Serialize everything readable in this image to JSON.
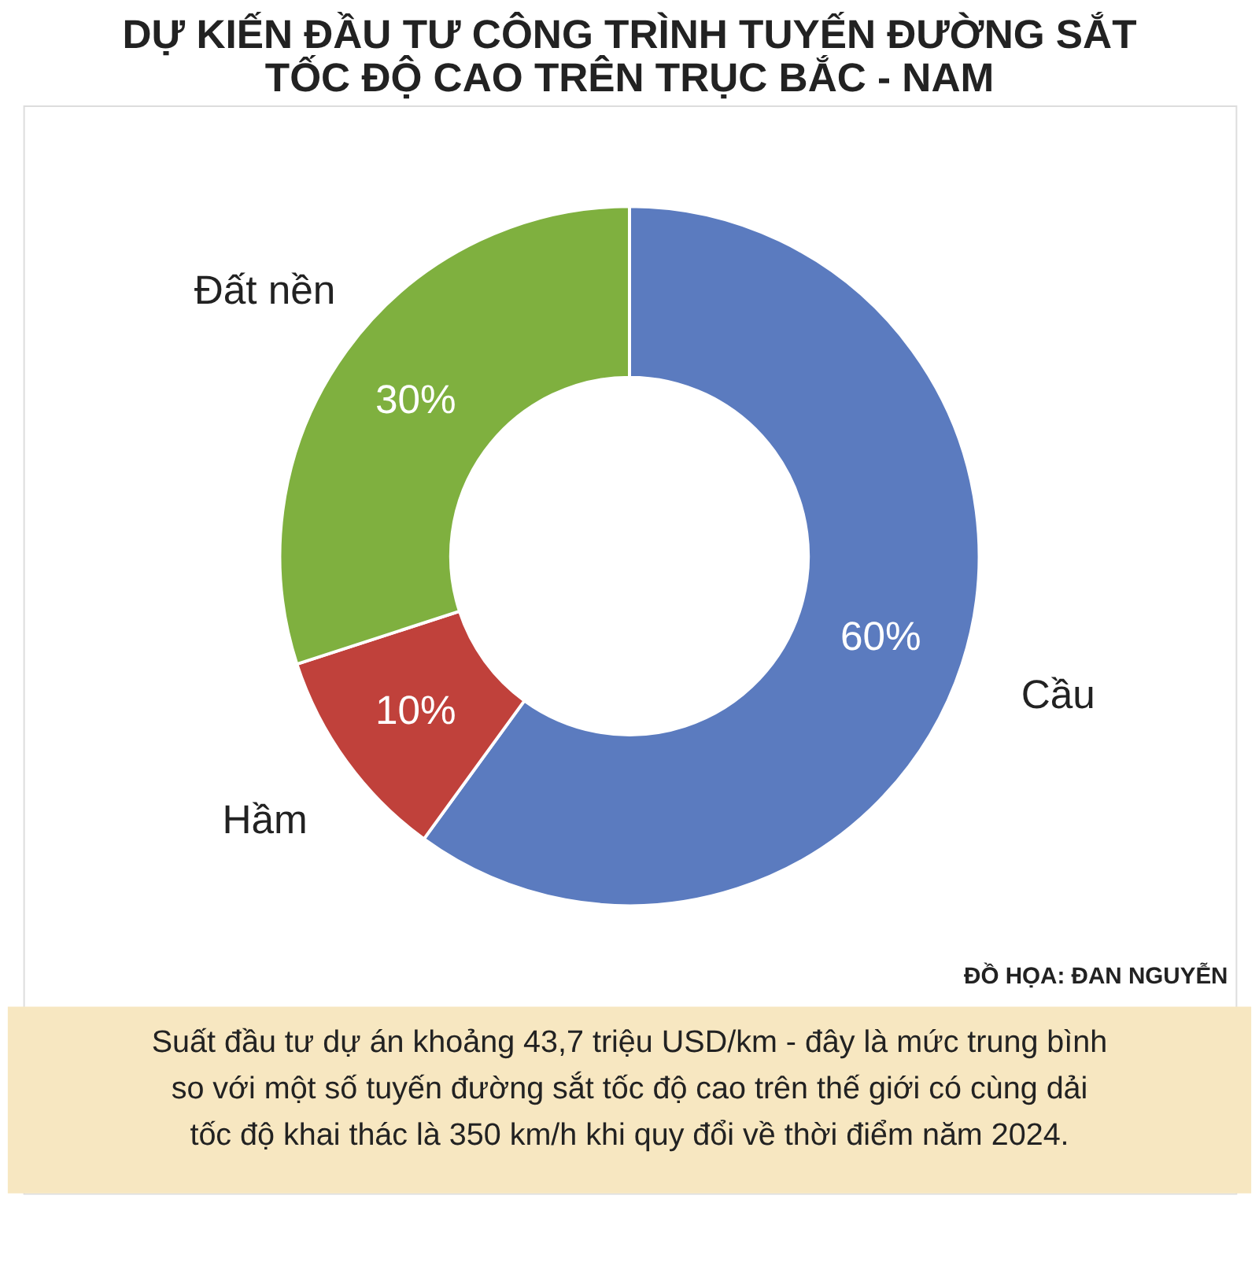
{
  "chart_data": {
    "type": "donut",
    "title": [
      "DỰ KIẾN ĐẦU TƯ CÔNG TRÌNH TUYẾN ĐƯỜNG SẮT",
      "TỐC ĐỘ CAO TRÊN TRỤC BẮC - NAM"
    ],
    "categories": [
      "Cầu",
      "Hầm",
      "Đất nền"
    ],
    "values": [
      60,
      10,
      30
    ],
    "colors": [
      "#5b7bbf",
      "#c0413b",
      "#7fb03f"
    ],
    "value_labels": [
      "60%",
      "10%",
      "30%"
    ],
    "legend": false,
    "annotations": [
      "ĐỒ HỌA: ĐAN NGUYỄN",
      "Suất đầu tư dự án khoảng 43,7 triệu USD/km - đây là mức trung bình so với một số tuyến đường sắt tốc độ cao trên thế giới có cùng dải tốc độ khai thác là 350 km/h khi quy đổi về thời điểm năm 2024."
    ]
  }
}
